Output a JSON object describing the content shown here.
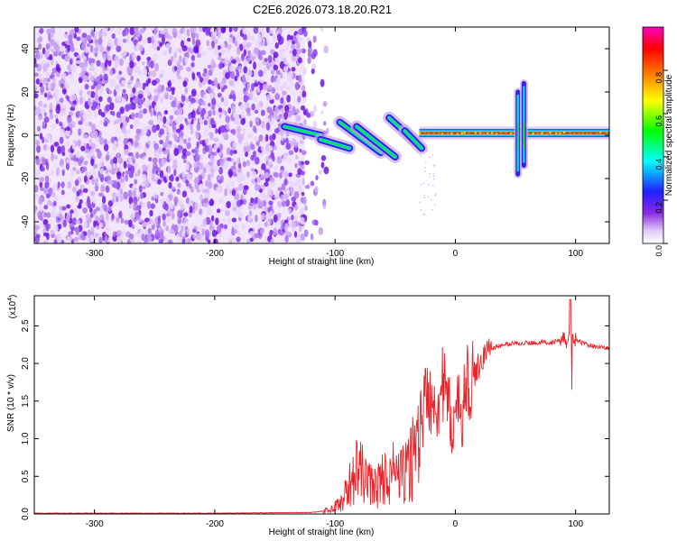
{
  "title": "C2E6.2026.073.18.20.R21",
  "chart_data": [
    {
      "type": "heatmap",
      "panel": "spectrogram",
      "xlabel": "Height of straight line (km)",
      "ylabel": "Frequency (Hz)",
      "xlim": [
        -350,
        128
      ],
      "ylim": [
        -50,
        50
      ],
      "x_ticks": [
        -300,
        -200,
        -100,
        0,
        100
      ],
      "y_ticks": [
        -40,
        -20,
        0,
        20,
        40
      ],
      "grid": false,
      "colorbar": {
        "label": "Normalized spectral amplitude",
        "range": [
          0,
          1
        ],
        "ticks": [
          "0.0",
          "0.2",
          "0.4",
          "0.6",
          "0.8"
        ],
        "colors": [
          "#ffffff",
          "#e0c8f8",
          "#8a2be2",
          "#2020ff",
          "#00ffff",
          "#00ff00",
          "#ffff00",
          "#ff8000",
          "#ff0000",
          "#ff00c0"
        ]
      },
      "regions": [
        {
          "name": "noise",
          "x_range": [
            -350,
            -125
          ],
          "freq_range": [
            -50,
            50
          ],
          "amplitude": 0.1
        },
        {
          "name": "transition",
          "x_range": [
            -140,
            -30
          ],
          "freq_range": [
            -10,
            10
          ],
          "amplitude": 0.4
        },
        {
          "name": "carrier",
          "x_range": [
            -30,
            128
          ],
          "freq": 1,
          "amplitude": 0.85
        },
        {
          "name": "spike",
          "x": 52,
          "freq_range": [
            -18,
            20
          ],
          "amplitude": 0.5
        },
        {
          "name": "spike",
          "x": 57,
          "freq_range": [
            -14,
            24
          ],
          "amplitude": 0.6
        }
      ]
    },
    {
      "type": "line",
      "panel": "snr",
      "xlabel": "Height of straight line (km)",
      "ylabel": "SNR (10 * v/v)",
      "y_multiplier": "(x10",
      "y_multiplier_exp": "4",
      "y_multiplier_close": ")",
      "xlim": [
        -350,
        128
      ],
      "ylim": [
        0,
        2.9
      ],
      "x_ticks": [
        -300,
        -200,
        -100,
        0,
        100
      ],
      "y_ticks": [
        "0.0",
        "0.5",
        "1.0",
        "1.5",
        "2.0",
        "2.5"
      ],
      "grid": false,
      "series": [
        {
          "color": "#e8242a",
          "x": [
            -350,
            -200,
            -120,
            -105,
            -95,
            -90,
            -85,
            -80,
            -75,
            -70,
            -65,
            -60,
            -55,
            -50,
            -45,
            -40,
            -35,
            -30,
            -25,
            -20,
            -15,
            -10,
            -5,
            0,
            5,
            10,
            15,
            20,
            25,
            30,
            35,
            40,
            50,
            60,
            70,
            80,
            85,
            90,
            95,
            100,
            105,
            110,
            115,
            120,
            128
          ],
          "y": [
            0.01,
            0.01,
            0.02,
            0.05,
            0.15,
            0.3,
            0.5,
            0.6,
            0.45,
            0.4,
            0.35,
            0.5,
            0.45,
            0.6,
            0.5,
            0.55,
            0.8,
            1.1,
            1.5,
            1.6,
            1.5,
            1.7,
            1.3,
            1.25,
            1.4,
            1.7,
            1.8,
            2.0,
            2.15,
            2.2,
            2.22,
            2.25,
            2.27,
            2.27,
            2.28,
            2.28,
            2.3,
            2.3,
            2.32,
            2.3,
            2.28,
            2.25,
            2.23,
            2.22,
            2.2
          ]
        }
      ]
    }
  ]
}
